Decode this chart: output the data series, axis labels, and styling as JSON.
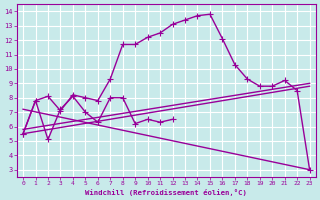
{
  "xlabel": "Windchill (Refroidissement éolien,°C)",
  "bg_color": "#c8eaea",
  "line_color": "#990099",
  "grid_color": "#ffffff",
  "xlim": [
    -0.5,
    23.5
  ],
  "ylim": [
    2.5,
    14.5
  ],
  "xticks": [
    0,
    1,
    2,
    3,
    4,
    5,
    6,
    7,
    8,
    9,
    10,
    11,
    12,
    13,
    14,
    15,
    16,
    17,
    18,
    19,
    20,
    21,
    22,
    23
  ],
  "yticks": [
    3,
    4,
    5,
    6,
    7,
    8,
    9,
    10,
    11,
    12,
    13,
    14
  ],
  "line1_x": [
    0,
    1,
    2,
    3,
    4,
    5,
    6,
    7,
    8,
    9,
    10,
    11,
    12,
    13,
    14,
    15,
    16,
    17,
    18,
    19,
    20,
    21,
    22,
    23
  ],
  "line1_y": [
    5.5,
    7.8,
    8.1,
    7.1,
    8.2,
    8.0,
    7.8,
    9.3,
    11.7,
    11.7,
    12.2,
    12.5,
    13.1,
    13.4,
    13.7,
    13.8,
    12.1,
    10.3,
    9.3,
    8.8,
    8.8,
    9.2,
    8.5,
    3.0
  ],
  "line2_x": [
    0,
    1,
    2,
    3,
    4,
    5,
    6,
    7,
    8,
    9,
    10,
    11,
    12
  ],
  "line2_y": [
    5.5,
    7.8,
    5.1,
    7.2,
    8.1,
    7.0,
    6.3,
    8.0,
    8.0,
    6.2,
    6.5,
    6.3,
    6.5
  ],
  "line3_x": [
    0,
    23
  ],
  "line3_y": [
    5.5,
    8.8
  ],
  "line4_x": [
    0,
    23
  ],
  "line4_y": [
    7.2,
    3.0
  ],
  "line5_x": [
    0,
    23
  ],
  "line5_y": [
    5.8,
    9.0
  ],
  "marker": "+",
  "markersize": 4,
  "linewidth": 1.0
}
